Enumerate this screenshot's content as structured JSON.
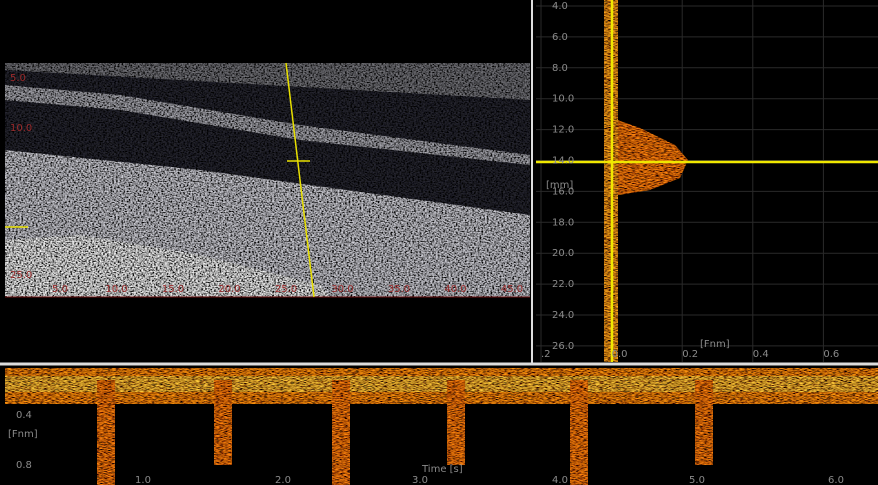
{
  "bmode": {
    "y_labels": [
      "5.0",
      "10.0",
      "25.0"
    ],
    "x_labels": [
      "5.0",
      "10.0",
      "15.0",
      "20.0",
      "25.0",
      "30.0",
      "35.0",
      "40.0",
      "45.0"
    ]
  },
  "profile": {
    "y_labels": [
      "4.0",
      "6.0",
      "8.0",
      "10.0",
      "12.0",
      "14.0",
      "16.0",
      "18.0",
      "20.0",
      "22.0",
      "24.0",
      "26.0"
    ],
    "y_unit": "[mm]",
    "x_labels": [
      ".2",
      "0.0",
      "0.2",
      "0.4",
      "0.6"
    ],
    "x_unit": "[Fnm]"
  },
  "spectrum": {
    "y_labels": [
      "0.4",
      "0.8"
    ],
    "y_unit": "[Fnm]",
    "x_labels": [
      "1.0",
      "2.0",
      "3.0",
      "4.0",
      "5.0",
      "6.0"
    ],
    "x_unit": "Time [s]"
  }
}
